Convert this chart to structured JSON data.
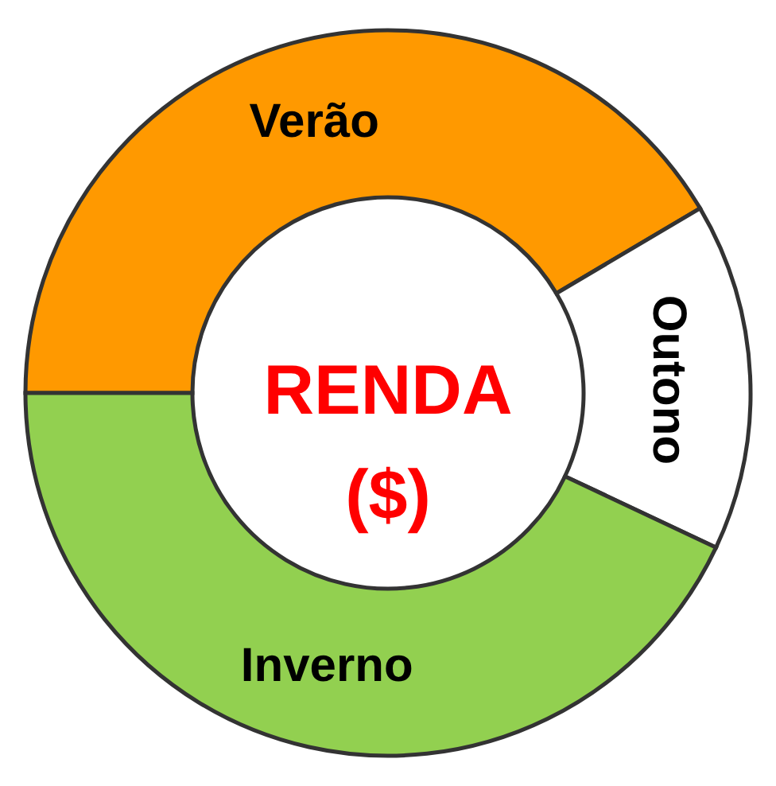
{
  "chart_data": {
    "type": "donut",
    "title": "RENDA ($)",
    "categories": [
      "Verão",
      "Outono",
      "Inverno"
    ],
    "values": [
      41.5,
      15.5,
      43
    ],
    "colors": [
      "#ff9900",
      "#ffffff",
      "#92d050"
    ]
  }
}
